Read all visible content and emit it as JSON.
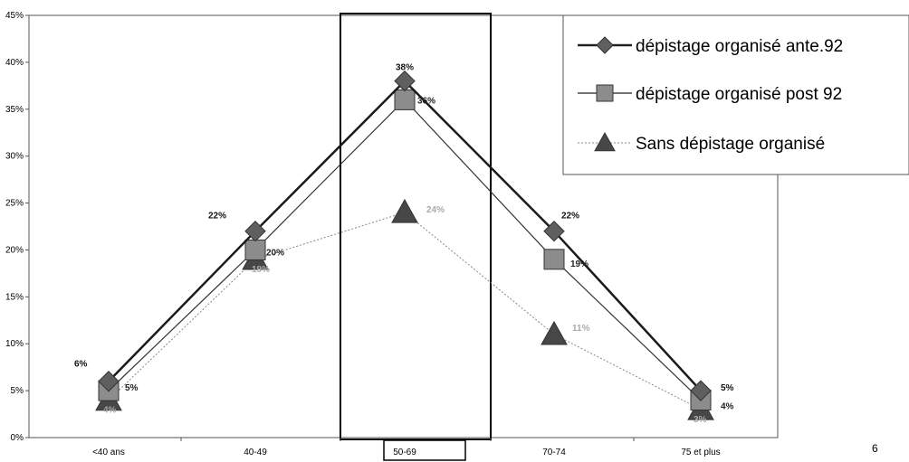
{
  "chart_data": {
    "type": "line",
    "categories": [
      "<40 ans",
      "40-49",
      "50-69",
      "70-74",
      "75 et plus"
    ],
    "ylim": [
      0,
      45
    ],
    "yticks": [
      0,
      5,
      10,
      15,
      20,
      25,
      30,
      35,
      40,
      45
    ],
    "ytick_labels": [
      "0%",
      "5%",
      "10%",
      "15%",
      "20%",
      "25%",
      "30%",
      "35%",
      "40%",
      "45%"
    ],
    "grid": false,
    "legend_position": "top-right",
    "highlighted_category": "50-69",
    "series": [
      {
        "name": "dépistage organisé ante.92",
        "values": [
          6,
          22,
          38,
          22,
          5
        ],
        "labels": [
          "6%",
          "22%",
          "38%",
          "22%",
          "5%"
        ],
        "marker": "diamond",
        "line_style": "solid-bold",
        "color": "#5f5f5f"
      },
      {
        "name": "dépistage organisé post 92",
        "values": [
          5,
          20,
          36,
          19,
          4
        ],
        "labels": [
          "5%",
          "20%",
          "36%",
          "19%",
          "4%"
        ],
        "marker": "square",
        "line_style": "solid",
        "color": "#8c8c8c"
      },
      {
        "name": "Sans dépistage organisé",
        "values": [
          4,
          19,
          24,
          11,
          3
        ],
        "labels": [
          "4%",
          "19%",
          "24%",
          "11%",
          "3%"
        ],
        "marker": "triangle",
        "line_style": "dotted",
        "color": "#474747"
      }
    ]
  },
  "page_number": "6"
}
